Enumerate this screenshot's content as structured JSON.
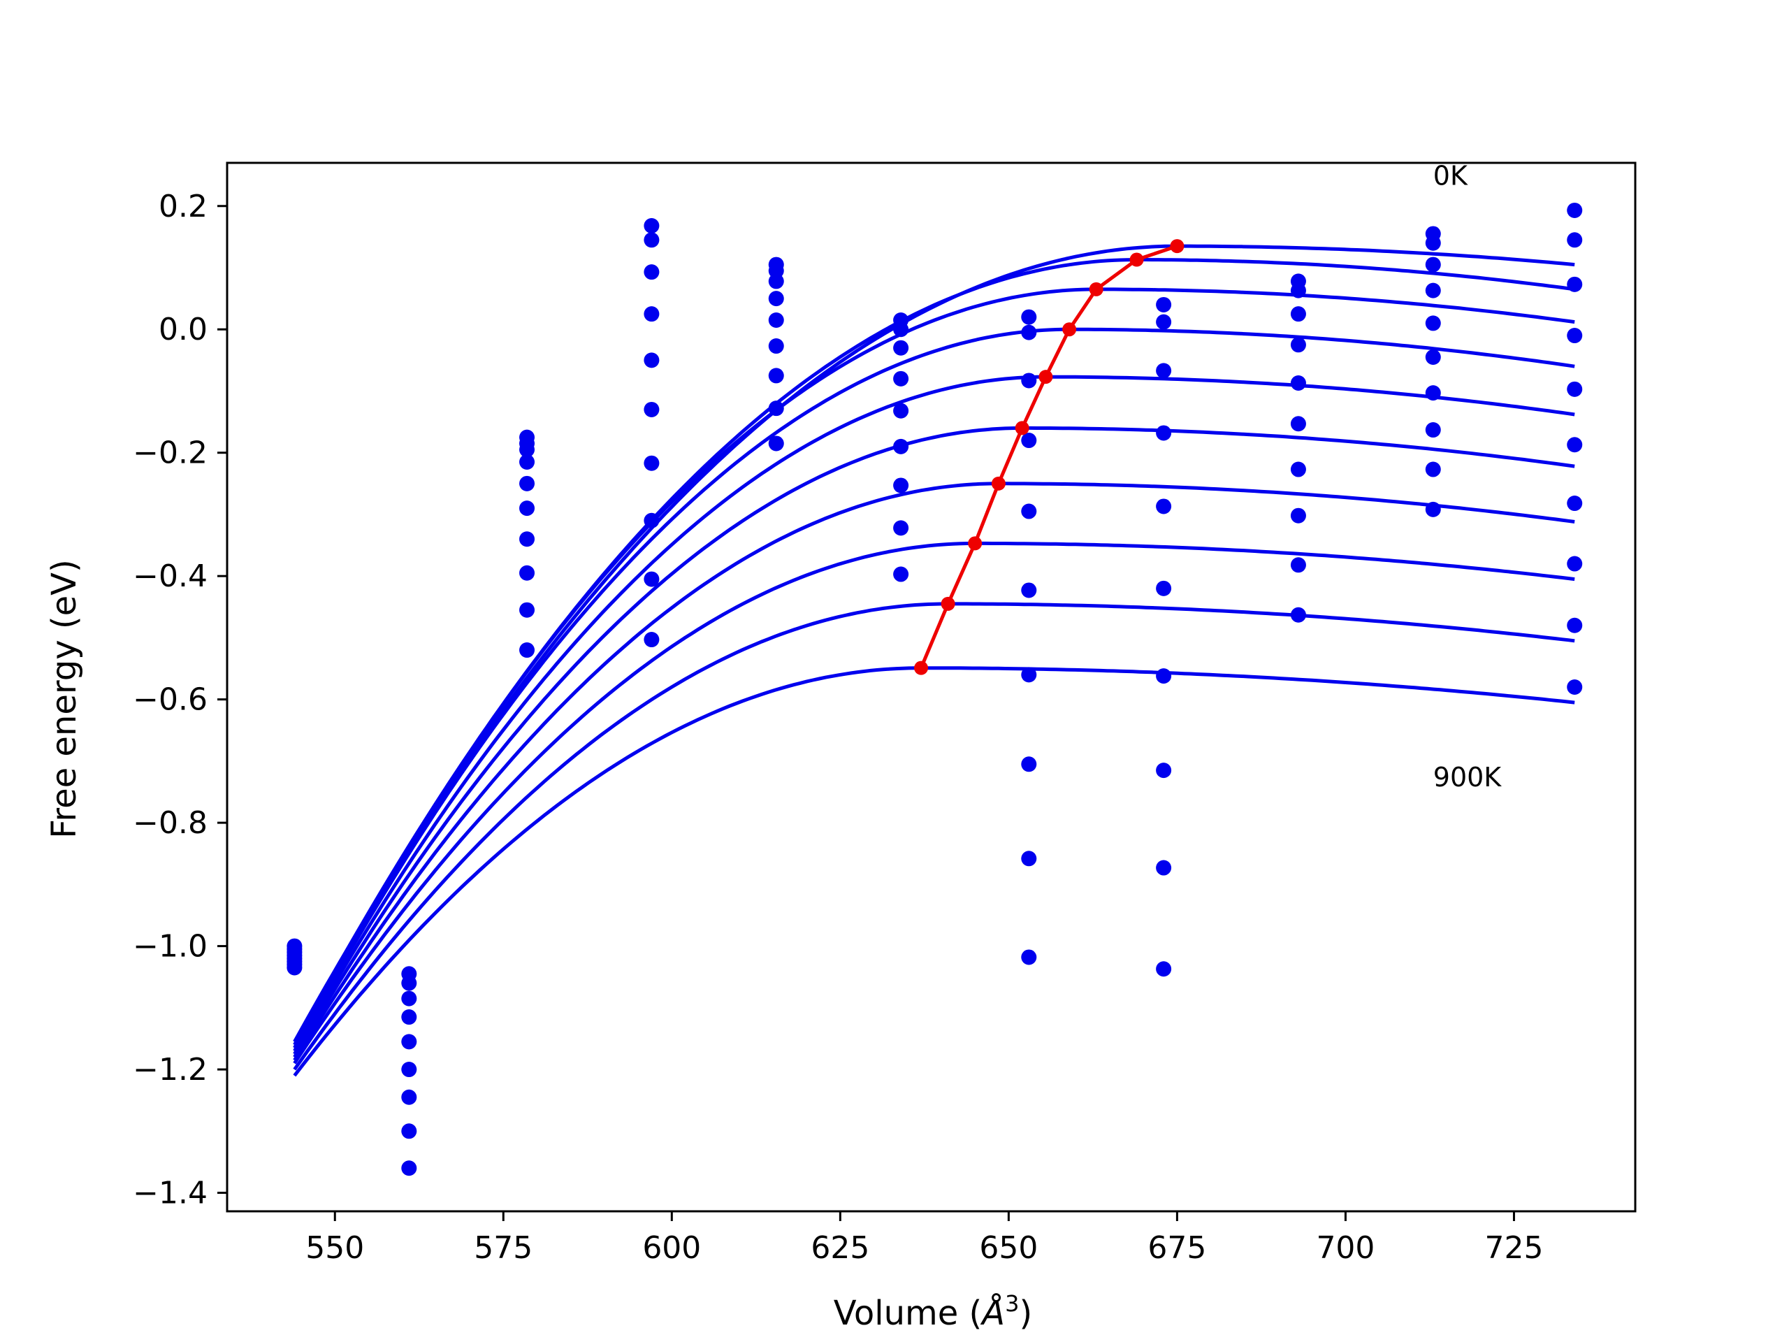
{
  "chart_data": {
    "type": "scatter",
    "xlabel_prefix": "Volume (",
    "xlabel_unit": "Å",
    "xlabel_exp": "3",
    "xlabel_suffix": ")",
    "ylabel": "Free energy (eV)",
    "xlim": [
      534,
      743
    ],
    "ylim": [
      -1.43,
      0.27
    ],
    "xticks": [
      550,
      575,
      600,
      625,
      650,
      675,
      700,
      725
    ],
    "yticks": [
      0.2,
      0.0,
      -0.2,
      -0.4,
      -0.6,
      -0.8,
      -1.0,
      -1.2,
      -1.4
    ],
    "grid": false,
    "annotations": [
      {
        "text": "0K",
        "x": 713,
        "y": 0.25
      },
      {
        "text": "900K",
        "x": 713,
        "y": -0.725
      }
    ],
    "colors": {
      "points": "#0000ee",
      "fits": "#0000ee",
      "minimum_line": "#ee0000",
      "axes": "#000000"
    },
    "data_points": {
      "volumes": [
        544,
        561,
        578.5,
        597,
        615.5,
        634,
        653,
        673,
        693,
        713,
        734
      ],
      "energies": [
        [
          -1.0,
          -1.005,
          -1.01,
          -1.015,
          -1.02,
          -1.025,
          -1.03,
          -1.035
        ],
        [
          -1.045,
          -1.06,
          -1.085,
          -1.115,
          -1.155,
          -1.2,
          -1.245,
          -1.3,
          -1.36
        ],
        [
          -0.175,
          -0.185,
          -0.195,
          -0.215,
          -0.25,
          -0.29,
          -0.34,
          -0.395,
          -0.455,
          -0.52
        ],
        [
          0.168,
          0.145,
          0.093,
          0.025,
          -0.05,
          -0.13,
          -0.217,
          -0.31,
          -0.405,
          -0.503
        ],
        [
          0.105,
          0.095,
          0.078,
          0.05,
          0.015,
          -0.027,
          -0.075,
          -0.128,
          -0.185
        ],
        [
          0.015,
          0.0,
          -0.03,
          -0.08,
          -0.132,
          -0.19,
          -0.253,
          -0.322,
          -0.397
        ],
        [
          0.02,
          -0.005,
          -0.083,
          -0.18,
          -0.295,
          -0.423,
          -0.56,
          -0.705,
          -0.858,
          -1.018
        ],
        [
          0.04,
          0.012,
          -0.067,
          -0.168,
          -0.287,
          -0.42,
          -0.562,
          -0.715,
          -0.873,
          -1.037
        ],
        [
          0.078,
          0.063,
          0.025,
          -0.025,
          -0.087,
          -0.153,
          -0.227,
          -0.302,
          -0.382,
          -0.463
        ],
        [
          0.155,
          0.14,
          0.105,
          0.063,
          0.01,
          -0.045,
          -0.103,
          -0.163,
          -0.227,
          -0.292
        ],
        [
          0.193,
          0.145,
          0.073,
          -0.01,
          -0.097,
          -0.187,
          -0.282,
          -0.38,
          -0.48,
          -0.58
        ]
      ]
    },
    "fit_curves": [
      {
        "peak_x": 675,
        "peak_y": 0.135,
        "start_y": -1.155,
        "end_y": 0.105
      },
      {
        "peak_x": 669,
        "peak_y": 0.113,
        "start_y": -1.16,
        "end_y": 0.065
      },
      {
        "peak_x": 663,
        "peak_y": 0.065,
        "start_y": -1.165,
        "end_y": 0.012
      },
      {
        "peak_x": 659,
        "peak_y": 0.0,
        "start_y": -1.17,
        "end_y": -0.06
      },
      {
        "peak_x": 655.5,
        "peak_y": -0.077,
        "start_y": -1.175,
        "end_y": -0.138
      },
      {
        "peak_x": 652,
        "peak_y": -0.16,
        "start_y": -1.18,
        "end_y": -0.222
      },
      {
        "peak_x": 648.5,
        "peak_y": -0.25,
        "start_y": -1.185,
        "end_y": -0.312
      },
      {
        "peak_x": 645,
        "peak_y": -0.347,
        "start_y": -1.19,
        "end_y": -0.405
      },
      {
        "peak_x": 641,
        "peak_y": -0.445,
        "start_y": -1.2,
        "end_y": -0.505
      },
      {
        "peak_x": 637,
        "peak_y": -0.549,
        "start_y": -1.21,
        "end_y": -0.605
      }
    ],
    "fit_x_range": [
      544,
      734
    ],
    "minimum_path": {
      "x": [
        637,
        641,
        645,
        648.5,
        652,
        655.5,
        659,
        663,
        669,
        675
      ],
      "y": [
        -0.549,
        -0.445,
        -0.347,
        -0.25,
        -0.16,
        -0.077,
        0.0,
        0.065,
        0.113,
        0.135
      ]
    }
  }
}
